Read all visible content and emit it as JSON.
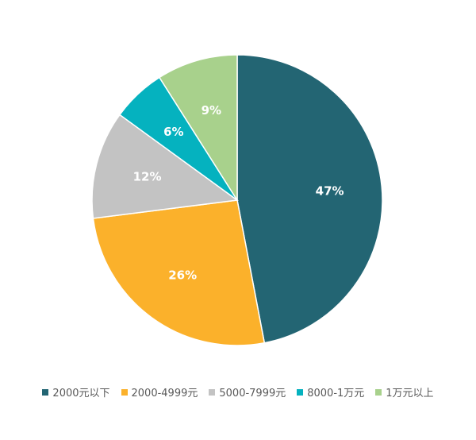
{
  "chart_data": {
    "type": "pie",
    "categories": [
      "2000元以下",
      "2000-4999元",
      "5000-7999元",
      "8000-1万元",
      "1万元以上"
    ],
    "values": [
      47,
      26,
      12,
      6,
      9
    ],
    "value_labels": [
      "47%",
      "26%",
      "12%",
      "6%",
      "9%"
    ],
    "colors": [
      "#236573",
      "#fbb12b",
      "#c3c3c3",
      "#05b2bf",
      "#a8d18c"
    ],
    "legend": "bottom"
  }
}
